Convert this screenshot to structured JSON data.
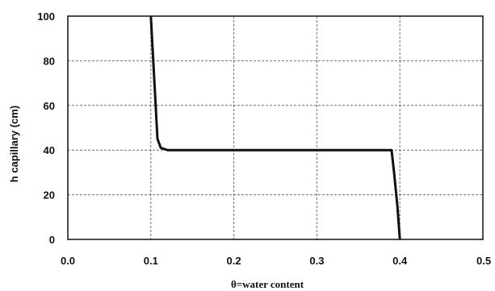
{
  "chart_data": {
    "type": "line",
    "title": "",
    "xlabel": "θ=water content",
    "ylabel": "h capillary (cm)",
    "xlim": [
      0.0,
      0.5
    ],
    "ylim": [
      0,
      100
    ],
    "xticks": [
      "0.0",
      "0.1",
      "0.2",
      "0.3",
      "0.4",
      "0.5"
    ],
    "yticks": [
      "0",
      "20",
      "40",
      "60",
      "80",
      "100"
    ],
    "grid": true,
    "legend": "none",
    "series": [
      {
        "color": "#111111",
        "x": [
          0.1,
          0.108,
          0.112,
          0.12,
          0.3,
          0.385,
          0.39,
          0.393,
          0.397,
          0.4
        ],
        "y": [
          100,
          45,
          41,
          40,
          40,
          40,
          40,
          30,
          15,
          0
        ]
      }
    ]
  }
}
